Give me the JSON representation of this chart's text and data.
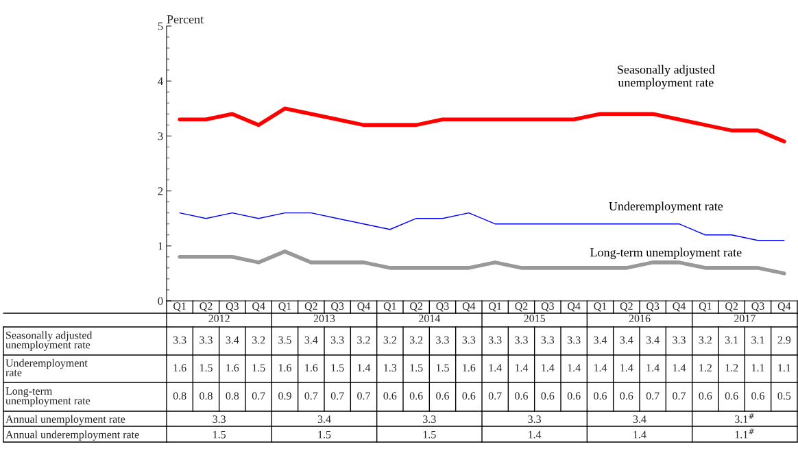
{
  "chart_data": {
    "type": "line",
    "ylabel": "Percent",
    "categories": [
      "Q1",
      "Q2",
      "Q3",
      "Q4",
      "Q1",
      "Q2",
      "Q3",
      "Q4",
      "Q1",
      "Q2",
      "Q3",
      "Q4",
      "Q1",
      "Q2",
      "Q3",
      "Q4",
      "Q1",
      "Q2",
      "Q3",
      "Q4",
      "Q1",
      "Q2",
      "Q3",
      "Q4"
    ],
    "series": [
      {
        "name": "Seasonally adjusted\nunemployment rate",
        "color": "#ff0000",
        "values": [
          3.3,
          3.3,
          3.4,
          3.2,
          3.5,
          3.4,
          3.3,
          3.2,
          3.2,
          3.2,
          3.3,
          3.3,
          3.3,
          3.3,
          3.3,
          3.3,
          3.4,
          3.4,
          3.4,
          3.3,
          3.2,
          3.1,
          3.1,
          2.9
        ]
      },
      {
        "name": "Underemployment\nrate",
        "color": "#0000ff",
        "values": [
          1.6,
          1.5,
          1.6,
          1.5,
          1.6,
          1.6,
          1.5,
          1.4,
          1.3,
          1.5,
          1.5,
          1.6,
          1.4,
          1.4,
          1.4,
          1.4,
          1.4,
          1.4,
          1.4,
          1.4,
          1.2,
          1.2,
          1.1,
          1.1
        ]
      },
      {
        "name": "Long-term\nunemployment rate",
        "color": "#999999",
        "values": [
          0.8,
          0.8,
          0.8,
          0.7,
          0.9,
          0.7,
          0.7,
          0.7,
          0.6,
          0.6,
          0.6,
          0.6,
          0.7,
          0.6,
          0.6,
          0.6,
          0.6,
          0.6,
          0.7,
          0.7,
          0.6,
          0.6,
          0.6,
          0.5
        ]
      }
    ],
    "annotations": [
      "2012",
      "2013",
      "2014",
      "2015",
      "2016",
      "2017",
      "Annual unemployment rate",
      "3.3",
      "3.4",
      "3.3",
      "3.3",
      "3.4",
      "3.1$^{#}$",
      "Annual underemployment rate",
      "1.5",
      "1.5",
      "1.5",
      "1.4",
      "1.4",
      "1.1$^{#}$"
    ],
    "ylim": [
      0,
      5
    ],
    "yticks": [
      0,
      1,
      2,
      3,
      4,
      5
    ],
    "grid": false,
    "legend": false,
    "data_labels": true,
    "marker": "none",
    "line_style": "solid"
  }
}
